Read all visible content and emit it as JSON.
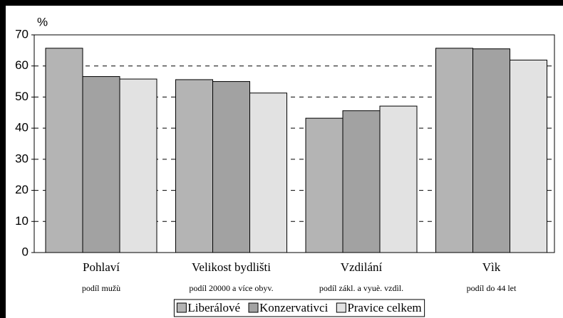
{
  "chart_data": {
    "type": "bar",
    "y_label": "%",
    "categories": [
      "Pohlaví",
      "Velikost bydlišti",
      "Vzdilání",
      "Vìk"
    ],
    "subcategories": [
      "podíl mužù",
      "podíl 20000 a více obyv.",
      "podíl zákl. a vyuè. vzdìl.",
      "podíl do 44 let"
    ],
    "series": [
      {
        "name": "Liberálové",
        "color": "#b4b4b4",
        "values": [
          65.7,
          55.6,
          43.2,
          65.7
        ]
      },
      {
        "name": "Konzervativci",
        "color": "#a2a2a2",
        "values": [
          56.6,
          55.0,
          45.6,
          65.5
        ]
      },
      {
        "name": "Pravice celkem",
        "color": "#e2e2e2",
        "values": [
          55.8,
          51.3,
          47.1,
          61.9
        ]
      }
    ],
    "ylim": [
      0,
      70
    ],
    "yticks": [
      0,
      10,
      20,
      30,
      40,
      50,
      60,
      70
    ],
    "grid": true,
    "legend": "bottom"
  }
}
